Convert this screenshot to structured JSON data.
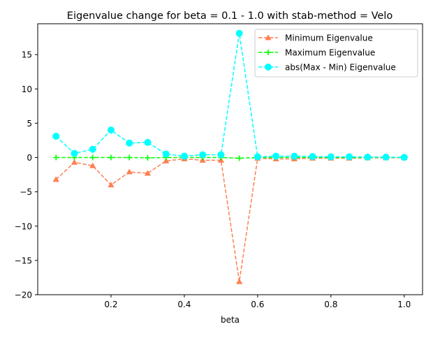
{
  "chart_data": {
    "type": "line",
    "title": "Eigenvalue change for beta = 0.1 - 1.0 with stab-method = Velo",
    "xlabel": "beta",
    "ylabel": "",
    "xlim": [
      0.0,
      1.05
    ],
    "ylim": [
      -20,
      19.5
    ],
    "x_ticks": [
      0.2,
      0.4,
      0.6,
      0.8,
      1.0
    ],
    "x_tick_labels": [
      "0.2",
      "0.4",
      "0.6",
      "0.8",
      "1.0"
    ],
    "y_ticks": [
      -20,
      -15,
      -10,
      -5,
      0,
      5,
      10,
      15
    ],
    "y_tick_labels": [
      "−20",
      "−15",
      "−10",
      "−5",
      "0",
      "5",
      "10",
      "15"
    ],
    "grid": false,
    "legend_position": "top-right",
    "x": [
      0.05,
      0.1,
      0.15,
      0.2,
      0.25,
      0.3,
      0.35,
      0.4,
      0.45,
      0.5,
      0.55,
      0.6,
      0.65,
      0.7,
      0.75,
      0.8,
      0.85,
      0.9,
      0.95,
      1.0
    ],
    "series": [
      {
        "name": "Minimum Eigenvalue",
        "color": "#ff7f50",
        "marker": "triangle",
        "values": [
          -3.2,
          -0.7,
          -1.2,
          -4.0,
          -2.1,
          -2.3,
          -0.5,
          -0.2,
          -0.4,
          -0.4,
          -18.1,
          -0.1,
          -0.2,
          -0.2,
          -0.1,
          -0.1,
          -0.1,
          -0.05,
          -0.05,
          -0.02
        ]
      },
      {
        "name": "Maximum Eigenvalue",
        "color": "#00ff00",
        "marker": "plus",
        "values": [
          0.0,
          0.0,
          0.0,
          0.0,
          0.0,
          -0.05,
          0.0,
          0.0,
          0.0,
          0.0,
          -0.1,
          0.0,
          0.0,
          0.0,
          0.0,
          0.0,
          0.0,
          0.0,
          0.0,
          0.0
        ]
      },
      {
        "name": "abs(Max - Min) Eigenvalue",
        "color": "#00ffff",
        "marker": "circle",
        "values": [
          3.1,
          0.6,
          1.2,
          4.0,
          2.1,
          2.2,
          0.5,
          0.2,
          0.4,
          0.4,
          18.1,
          0.1,
          0.2,
          0.2,
          0.15,
          0.1,
          0.1,
          0.05,
          0.05,
          0.02
        ]
      }
    ]
  }
}
